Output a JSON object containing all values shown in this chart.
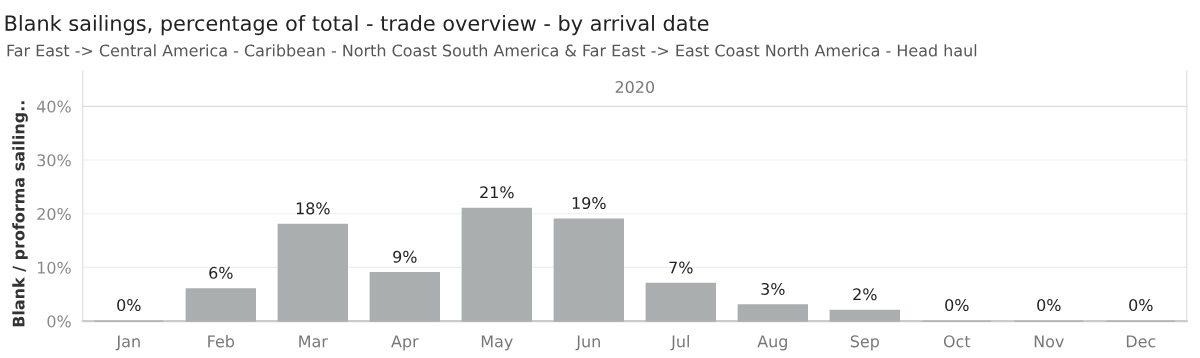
{
  "chart_data": {
    "type": "bar",
    "title": "Blank sailings, percentage of total - trade overview - by arrival date",
    "subtitle": "Far East -> Central America - Caribbean - North Coast South America & Far East -> East Coast North America - Head haul",
    "annotations": [
      "2020"
    ],
    "ylabel": "Blank / proforma sailing..",
    "categories": [
      "Jan",
      "Feb",
      "Mar",
      "Apr",
      "May",
      "Jun",
      "Jul",
      "Aug",
      "Sep",
      "Oct",
      "Nov",
      "Dec"
    ],
    "values": [
      0,
      6,
      18,
      9,
      21,
      19,
      7,
      3,
      2,
      0,
      0,
      0
    ],
    "value_labels": [
      "0%",
      "6%",
      "18%",
      "9%",
      "21%",
      "19%",
      "7%",
      "3%",
      "2%",
      "0%",
      "0%",
      "0%"
    ],
    "color": "#abaeaf",
    "ylim": [
      0,
      40
    ],
    "yticks": [
      {
        "value": 0,
        "label": "0%"
      },
      {
        "value": 10,
        "label": "10%"
      },
      {
        "value": 20,
        "label": "20%"
      },
      {
        "value": 30,
        "label": "30%"
      },
      {
        "value": 40,
        "label": "40%"
      }
    ],
    "grid": "y",
    "legend": false
  }
}
